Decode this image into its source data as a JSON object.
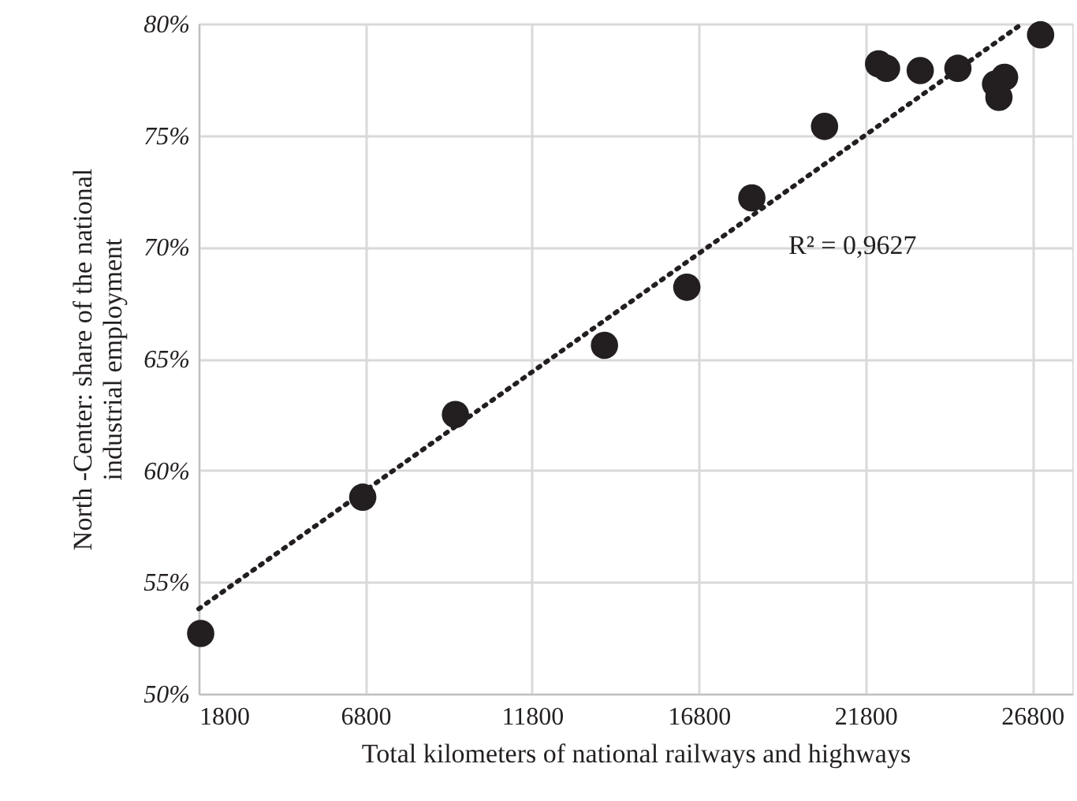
{
  "chart_data": {
    "type": "scatter",
    "xlabel": "Total kilometers of national railways and highways",
    "ylabel": "North -Center: share of the national\nindustrial employment",
    "series": [
      {
        "color": "#231f20",
        "marker": "circle",
        "x": [
          1860,
          6720,
          9500,
          13970,
          16440,
          18390,
          20570,
          22190,
          22430,
          23440,
          24570,
          25700,
          25800,
          25970,
          27050
        ],
        "values": [
          52.7,
          58.8,
          62.5,
          65.6,
          68.2,
          72.2,
          75.4,
          78.2,
          78.0,
          77.9,
          78.0,
          77.3,
          76.7,
          77.6,
          79.5
        ]
      },
      {
        "type": "line",
        "color": "#231f20",
        "line_style": "dotted",
        "x": [
          1800,
          26500
        ],
        "values": [
          53.8,
          80.0
        ]
      }
    ],
    "annotations": [
      "R² = 0,9627"
    ],
    "xlim": [
      1800,
      28000
    ],
    "xticks": [
      1800,
      6800,
      11800,
      16800,
      21800,
      26800
    ],
    "ylim": [
      50,
      80
    ],
    "yticks": [
      {
        "value": 50,
        "label": "50%"
      },
      {
        "value": 55,
        "label": "55%"
      },
      {
        "value": 60,
        "label": "60%"
      },
      {
        "value": 65,
        "label": "65%"
      },
      {
        "value": 70,
        "label": "70%"
      },
      {
        "value": 75,
        "label": "75%"
      },
      {
        "value": 80,
        "label": "80%"
      }
    ],
    "grid": true
  }
}
